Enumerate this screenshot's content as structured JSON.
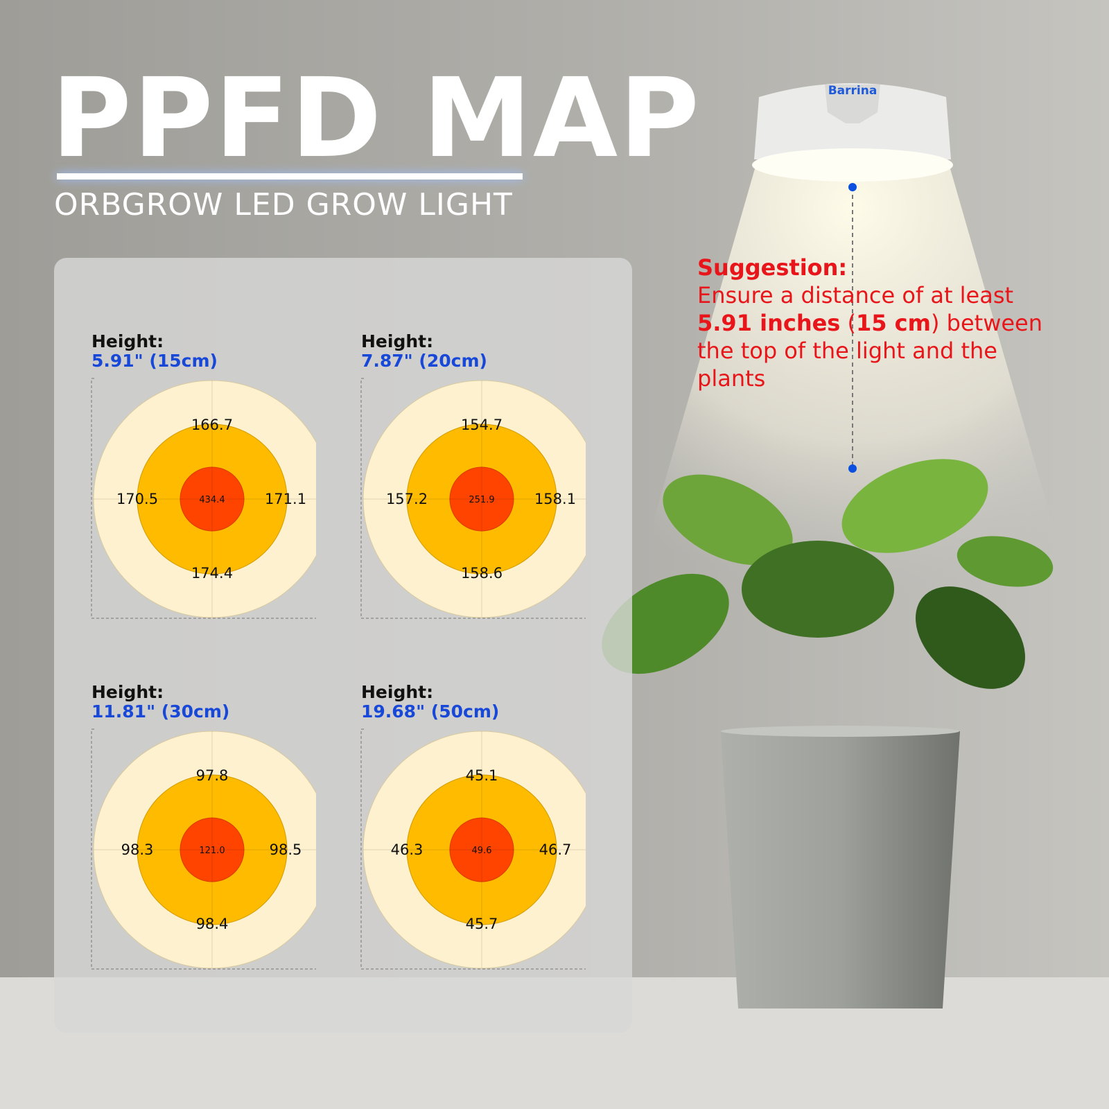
{
  "title": "PPFD MAP",
  "subtitle": "ORBGROW LED GROW LIGHT",
  "brand": "Barrina",
  "colors": {
    "outer": "#fdf1cf",
    "middle": "#ffbb00",
    "center": "#ff4400",
    "height_value": "#1848d8",
    "suggestion": "#e8161a",
    "dot": "#0a4fe0"
  },
  "maps": [
    {
      "label": "Height:",
      "height": "5.91\" (15cm)",
      "top": "166.7",
      "left": "170.5",
      "right": "171.1",
      "bottom": "174.4",
      "center": "434.4"
    },
    {
      "label": "Height:",
      "height": "7.87\" (20cm)",
      "top": "154.7",
      "left": "157.2",
      "right": "158.1",
      "bottom": "158.6",
      "center": "251.9"
    },
    {
      "label": "Height:",
      "height": "11.81\" (30cm)",
      "top": "97.8",
      "left": "98.3",
      "right": "98.5",
      "bottom": "98.4",
      "center": "121.0"
    },
    {
      "label": "Height:",
      "height": "19.68\" (50cm)",
      "top": "45.1",
      "left": "46.3",
      "right": "46.7",
      "bottom": "45.7",
      "center": "49.6"
    }
  ],
  "suggestion": {
    "heading": "Suggestion:",
    "line1": "Ensure a distance of at least",
    "bold": "5.91 inches",
    "paren_open": " (",
    "bold2": "15 cm",
    "rest": ") between the top of the light and the plants"
  }
}
